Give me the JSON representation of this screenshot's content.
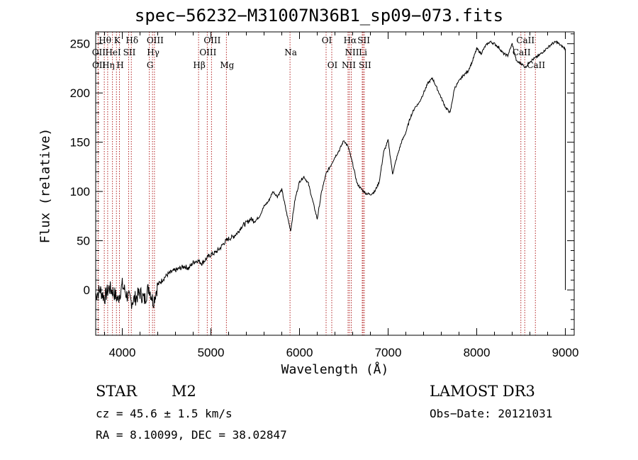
{
  "chart_data": {
    "type": "line",
    "title": "spec−56232−M31007N36B1_sp09−073.fits",
    "xlabel": "Wavelength (Å)",
    "ylabel": "Flux (relative)",
    "xlim": [
      3700,
      9100
    ],
    "ylim": [
      -46,
      262
    ],
    "xticks": [
      4000,
      5000,
      6000,
      7000,
      8000,
      9000
    ],
    "xtick_labels": [
      "4000",
      "5000",
      "6000",
      "7000",
      "8000",
      "9000"
    ],
    "yticks": [
      0,
      50,
      100,
      150,
      200,
      250
    ],
    "ytick_labels": [
      "0",
      "50",
      "100",
      "150",
      "200",
      "250"
    ],
    "series": [
      {
        "name": "spectrum",
        "x": [
          3700,
          3750,
          3800,
          3850,
          3900,
          3950,
          4000,
          4050,
          4100,
          4150,
          4200,
          4250,
          4300,
          4350,
          4400,
          4450,
          4500,
          4550,
          4600,
          4650,
          4700,
          4750,
          4800,
          4850,
          4900,
          4950,
          5000,
          5050,
          5100,
          5150,
          5200,
          5250,
          5300,
          5350,
          5400,
          5450,
          5500,
          5550,
          5600,
          5650,
          5700,
          5750,
          5800,
          5850,
          5900,
          5950,
          6000,
          6050,
          6100,
          6150,
          6200,
          6250,
          6300,
          6350,
          6400,
          6450,
          6500,
          6550,
          6600,
          6650,
          6700,
          6750,
          6800,
          6850,
          6900,
          6950,
          7000,
          7050,
          7100,
          7150,
          7200,
          7250,
          7300,
          7350,
          7400,
          7450,
          7500,
          7550,
          7600,
          7650,
          7700,
          7750,
          7800,
          7850,
          7900,
          7950,
          8000,
          8050,
          8100,
          8150,
          8200,
          8250,
          8300,
          8350,
          8400,
          8450,
          8500,
          8550,
          8600,
          8650,
          8700,
          8750,
          8800,
          8850,
          8900,
          8950,
          9000
        ],
        "y": [
          -5,
          0,
          -8,
          2,
          -2,
          -10,
          5,
          -5,
          -12,
          -8,
          -3,
          -10,
          3,
          -12,
          5,
          10,
          15,
          18,
          20,
          22,
          24,
          22,
          28,
          30,
          27,
          32,
          36,
          38,
          42,
          48,
          52,
          54,
          58,
          65,
          68,
          72,
          70,
          75,
          85,
          90,
          100,
          95,
          102,
          80,
          60,
          92,
          110,
          115,
          108,
          90,
          72,
          100,
          118,
          126,
          135,
          142,
          152,
          145,
          128,
          108,
          102,
          98,
          97,
          100,
          110,
          140,
          152,
          118,
          135,
          150,
          160,
          175,
          185,
          190,
          200,
          210,
          215,
          205,
          195,
          185,
          180,
          205,
          212,
          218,
          222,
          232,
          245,
          240,
          248,
          252,
          250,
          246,
          240,
          238,
          250,
          232,
          230,
          226,
          232,
          235,
          238,
          242,
          246,
          250,
          252,
          248,
          245
        ]
      }
    ],
    "line_labels": [
      {
        "text": "Hθ",
        "x": 3797,
        "row": 0
      },
      {
        "text": "K",
        "x": 3934,
        "row": 0
      },
      {
        "text": "Hδ",
        "x": 4102,
        "row": 0
      },
      {
        "text": "OIII",
        "x": 4363,
        "row": 0
      },
      {
        "text": "OIII",
        "x": 5007,
        "row": 0
      },
      {
        "text": "OI",
        "x": 6300,
        "row": 0
      },
      {
        "text": "Hα",
        "x": 6563,
        "row": 0
      },
      {
        "text": "SII",
        "x": 6717,
        "row": 0
      },
      {
        "text": "CaII",
        "x": 8542,
        "row": 0
      },
      {
        "text": "OII",
        "x": 3727,
        "row": 1
      },
      {
        "text": "HeI",
        "x": 3889,
        "row": 1
      },
      {
        "text": "SII",
        "x": 4072,
        "row": 1
      },
      {
        "text": "Hγ",
        "x": 4341,
        "row": 1
      },
      {
        "text": "OIII",
        "x": 4959,
        "row": 1
      },
      {
        "text": "Na",
        "x": 5893,
        "row": 1
      },
      {
        "text": "NII",
        "x": 6584,
        "row": 1
      },
      {
        "text": "Li",
        "x": 6708,
        "row": 1
      },
      {
        "text": "CaII",
        "x": 8498,
        "row": 1
      },
      {
        "text": "OII",
        "x": 3729,
        "row": 2
      },
      {
        "text": "Hη",
        "x": 3835,
        "row": 2
      },
      {
        "text": "H",
        "x": 3968,
        "row": 2
      },
      {
        "text": "G",
        "x": 4305,
        "row": 2
      },
      {
        "text": "Hβ",
        "x": 4861,
        "row": 2
      },
      {
        "text": "Mg",
        "x": 5175,
        "row": 2
      },
      {
        "text": "OI",
        "x": 6364,
        "row": 2
      },
      {
        "text": "NII",
        "x": 6548,
        "row": 2
      },
      {
        "text": "SII",
        "x": 6731,
        "row": 2
      },
      {
        "text": "CaII",
        "x": 8662,
        "row": 2
      }
    ],
    "line_marker_color": "#b22222"
  },
  "info": {
    "object_class": "STAR",
    "subclass": "M2",
    "survey": "LAMOST DR3",
    "cz": "cz = 45.6 ± 1.5 km/s",
    "obs_date": "Obs−Date: 20121031",
    "coords": "RA =   8.10099, DEC =  38.02847"
  }
}
